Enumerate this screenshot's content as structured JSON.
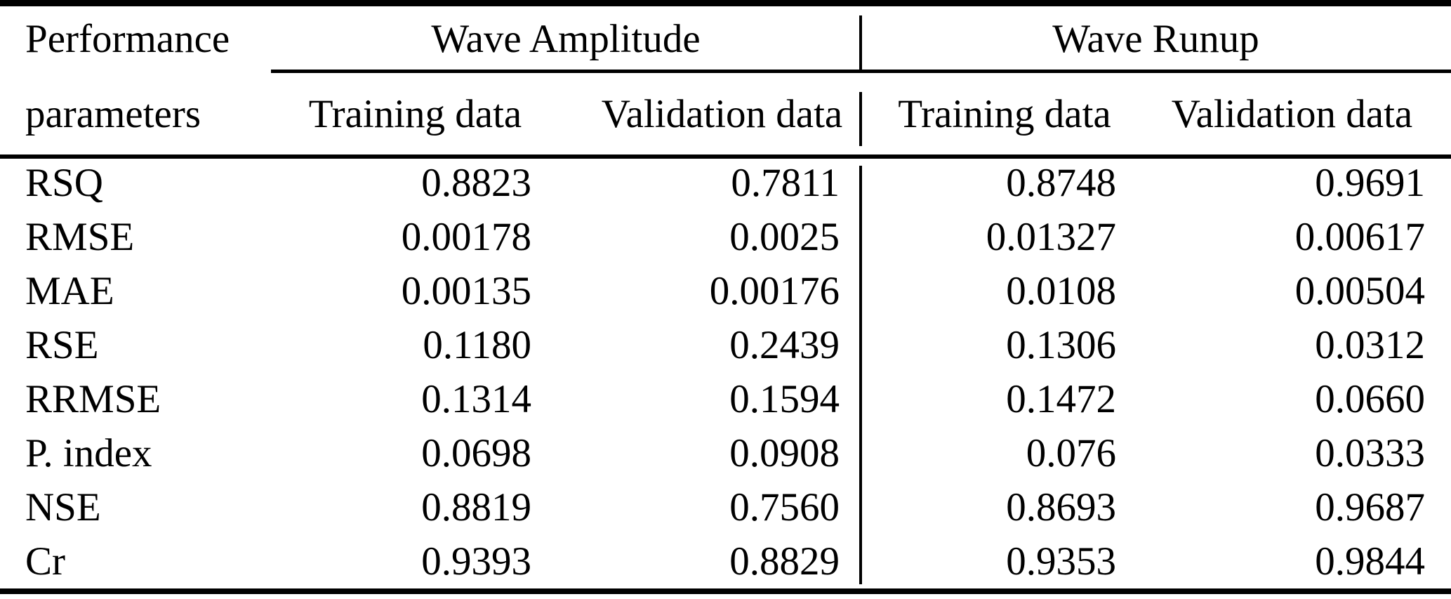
{
  "table": {
    "header": {
      "param_line1": "Performance",
      "param_line2": "parameters",
      "groups": [
        "Wave Amplitude",
        "Wave Runup"
      ],
      "subheaders": [
        "Training data",
        "Validation data",
        "Training data",
        "Validation data"
      ]
    },
    "rows": [
      {
        "param": "RSQ",
        "values": [
          "0.8823",
          "0.7811",
          "0.8748",
          "0.9691"
        ]
      },
      {
        "param": "RMSE",
        "values": [
          "0.00178",
          "0.0025",
          "0.01327",
          "0.00617"
        ]
      },
      {
        "param": "MAE",
        "values": [
          "0.00135",
          "0.00176",
          "0.0108",
          "0.00504"
        ]
      },
      {
        "param": "RSE",
        "values": [
          "0.1180",
          "0.2439",
          "0.1306",
          "0.0312"
        ]
      },
      {
        "param": "RRMSE",
        "values": [
          "0.1314",
          "0.1594",
          "0.1472",
          "0.0660"
        ]
      },
      {
        "param": "P. index",
        "values": [
          "0.0698",
          "0.0908",
          "0.076",
          "0.0333"
        ]
      },
      {
        "param": "NSE",
        "values": [
          "0.8819",
          "0.7560",
          "0.8693",
          "0.9687"
        ]
      },
      {
        "param": "Cr",
        "values": [
          "0.9393",
          "0.8829",
          "0.9353",
          "0.9844"
        ]
      }
    ],
    "colors": {
      "text": "#000000",
      "background": "#ffffff",
      "rule": "#000000"
    }
  },
  "chart_data": {
    "type": "table",
    "columns": [
      "Performance parameters",
      "Wave Amplitude - Training data",
      "Wave Amplitude - Validation data",
      "Wave Runup - Training data",
      "Wave Runup - Validation data"
    ],
    "rows": [
      [
        "RSQ",
        0.8823,
        0.7811,
        0.8748,
        0.9691
      ],
      [
        "RMSE",
        0.00178,
        0.0025,
        0.01327,
        0.00617
      ],
      [
        "MAE",
        0.00135,
        0.00176,
        0.0108,
        0.00504
      ],
      [
        "RSE",
        0.118,
        0.2439,
        0.1306,
        0.0312
      ],
      [
        "RRMSE",
        0.1314,
        0.1594,
        0.1472,
        0.066
      ],
      [
        "P. index",
        0.0698,
        0.0908,
        0.076,
        0.0333
      ],
      [
        "NSE",
        0.8819,
        0.756,
        0.8693,
        0.9687
      ],
      [
        "Cr",
        0.9393,
        0.8829,
        0.9353,
        0.9844
      ]
    ]
  }
}
